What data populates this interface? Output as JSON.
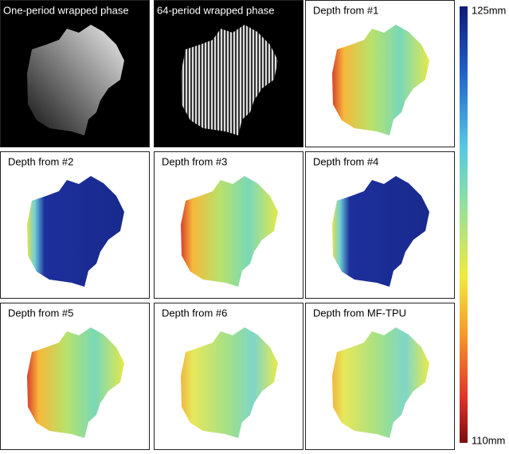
{
  "panels": [
    {
      "title": "One-period wrapped phase"
    },
    {
      "title": "64-period wrapped phase"
    },
    {
      "title": "Depth from #1"
    },
    {
      "title": "Depth from #2"
    },
    {
      "title": "Depth from #3"
    },
    {
      "title": "Depth from #4"
    },
    {
      "title": "Depth from #5"
    },
    {
      "title": "Depth from #6"
    },
    {
      "title": "Depth from MF-TPU"
    }
  ],
  "colorbar": {
    "top_label": "125mm",
    "bottom_label": "110mm"
  }
}
